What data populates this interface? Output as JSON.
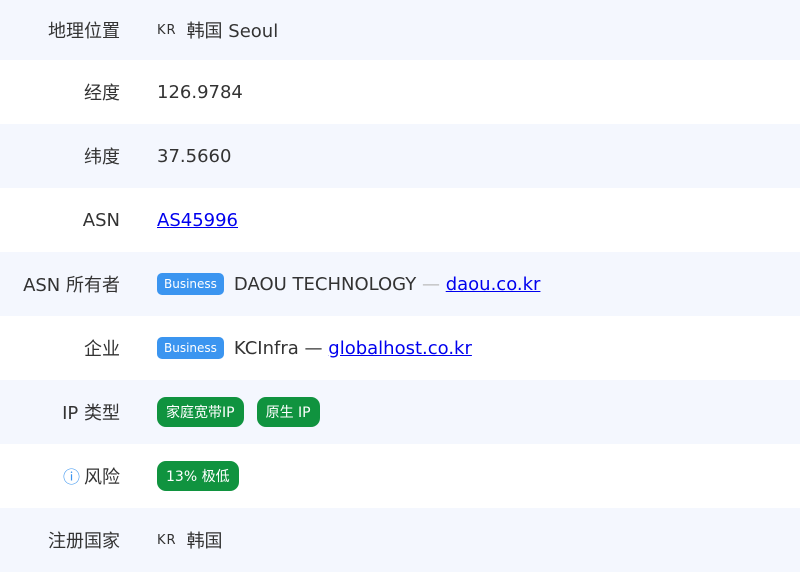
{
  "rows": [
    {
      "label": "地理位置",
      "flag": "KR",
      "value": "韩国 Seoul"
    },
    {
      "label": "经度",
      "value": "126.9784"
    },
    {
      "label": "纬度",
      "value": "37.5660"
    },
    {
      "label": "ASN",
      "link": "AS45996"
    },
    {
      "label": "ASN 所有者",
      "badge": "Business",
      "value": "DAOU TECHNOLOGY",
      "sep": "—",
      "link": "daou.co.kr"
    },
    {
      "label": "企业",
      "badge": "Business",
      "value": "KCInfra",
      "sep": "—",
      "link": "globalhost.co.kr"
    },
    {
      "label": "IP 类型",
      "tags": [
        "家庭宽带IP",
        "原生 IP"
      ]
    },
    {
      "label": "风险",
      "info_icon": "info-circle-icon",
      "tag": "13% 极低"
    },
    {
      "label": "注册国家",
      "flag": "KR",
      "value": "韩国"
    }
  ],
  "colors": {
    "business": "#3b95f0",
    "green": "#10933f",
    "row_alt": "#f4f7fe"
  }
}
